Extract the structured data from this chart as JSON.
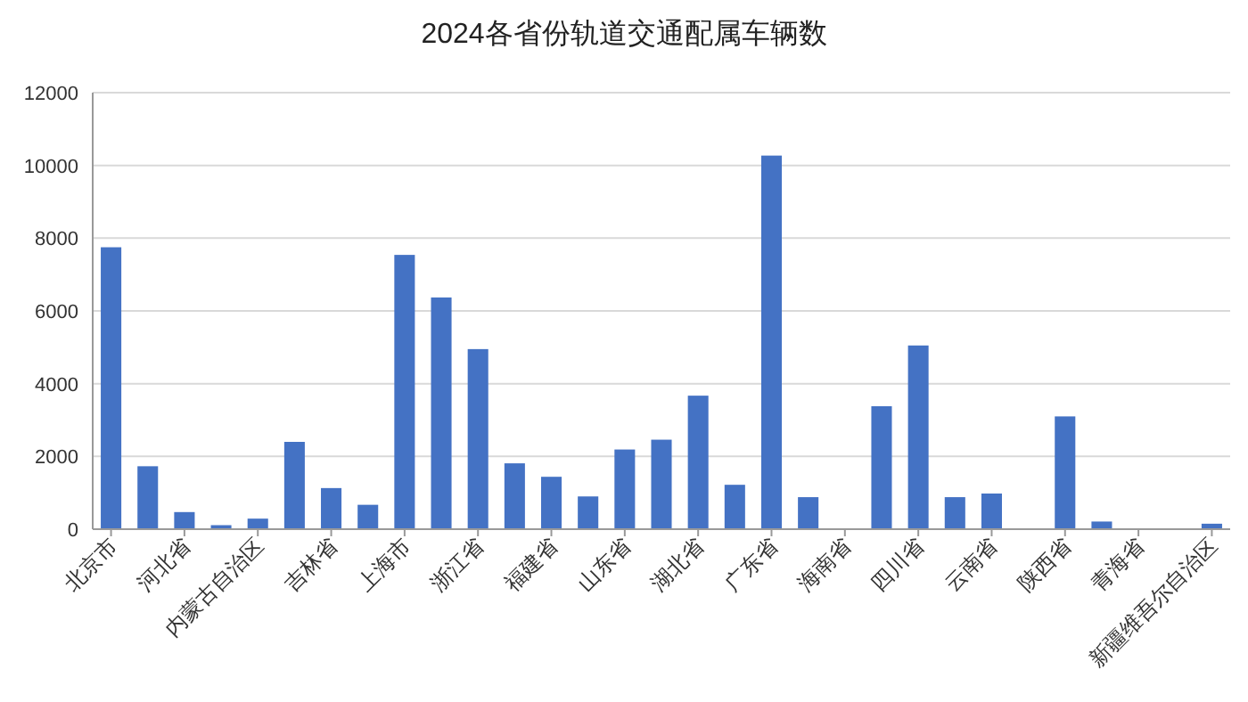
{
  "chart_data": {
    "type": "bar",
    "title": "2024各省份轨道交通配属车辆数",
    "categories": [
      "北京市",
      null,
      "河北省",
      null,
      "内蒙古自治区",
      null,
      "吉林省",
      null,
      "上海市",
      null,
      "浙江省",
      null,
      "福建省",
      null,
      "山东省",
      null,
      "湖北省",
      null,
      "广东省",
      null,
      "海南省",
      null,
      "四川省",
      null,
      "云南省",
      null,
      "陕西省",
      null,
      "青海省",
      null,
      "新疆维吾尔自治区"
    ],
    "values": [
      7750,
      1730,
      470,
      110,
      290,
      2400,
      1130,
      670,
      7540,
      6370,
      4950,
      1810,
      1440,
      900,
      2190,
      2460,
      3670,
      1220,
      10270,
      880,
      0,
      3380,
      5050,
      880,
      980,
      0,
      3100,
      210,
      0,
      0,
      150
    ],
    "color": "#4472c4",
    "ylim": [
      0,
      12000
    ],
    "yticks": [
      0,
      2000,
      4000,
      6000,
      8000,
      10000,
      12000
    ],
    "grid": "y"
  }
}
